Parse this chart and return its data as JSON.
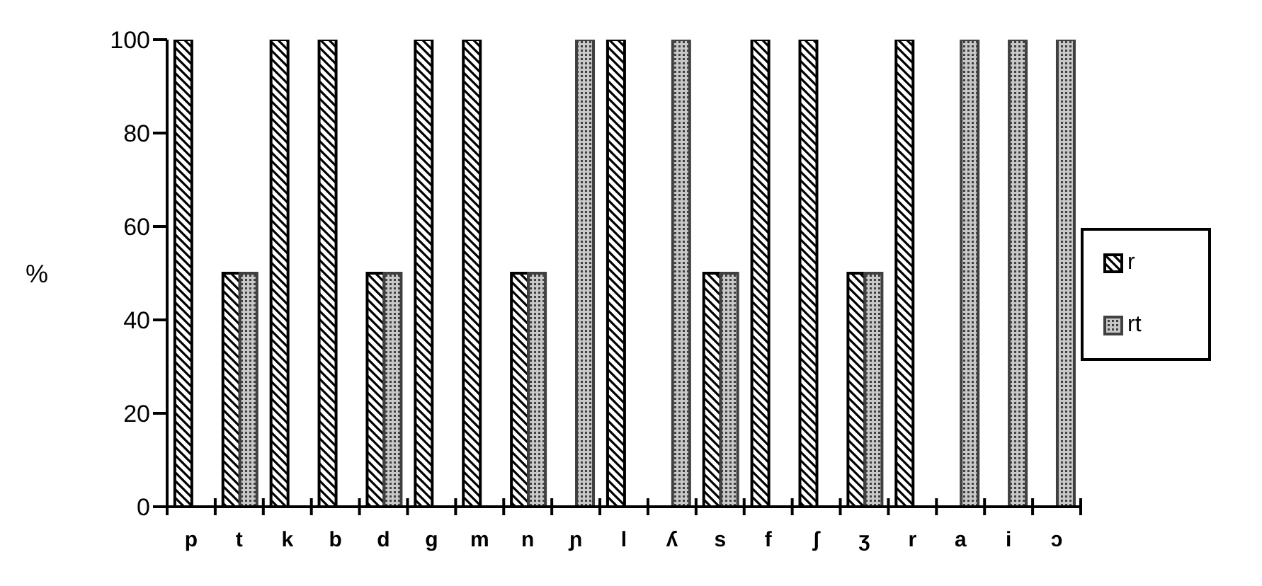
{
  "chart_data": {
    "type": "bar",
    "ylabel": "%",
    "categories": [
      "p",
      "t",
      "k",
      "b",
      "d",
      "g",
      "m",
      "n",
      "ɲ",
      "l",
      "ʎ",
      "s",
      "f",
      "ʃ",
      "ʒ",
      "r",
      "a",
      "i",
      "ɔ"
    ],
    "series": [
      {
        "name": "r",
        "color": "#000000",
        "values": [
          100,
          50,
          100,
          100,
          50,
          100,
          100,
          50,
          0,
          100,
          0,
          50,
          100,
          100,
          50,
          100,
          0,
          0,
          0
        ]
      },
      {
        "name": "rt",
        "color": "#404040",
        "values": [
          0,
          50,
          0,
          0,
          50,
          0,
          0,
          50,
          100,
          0,
          100,
          50,
          0,
          0,
          50,
          0,
          100,
          100,
          100
        ]
      }
    ],
    "ylim": [
      0,
      100
    ],
    "yticks": [
      0,
      20,
      40,
      60,
      80,
      100
    ],
    "grid": false,
    "legend": "right"
  }
}
